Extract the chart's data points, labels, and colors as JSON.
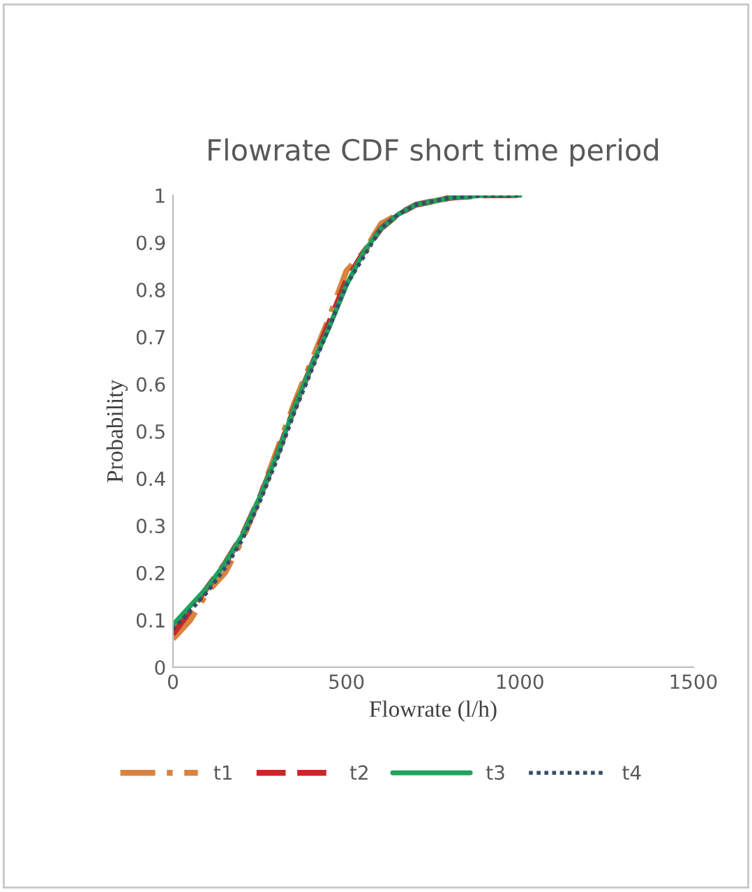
{
  "chart_data": {
    "type": "line",
    "title": "Flowrate CDF short time period",
    "xlabel": "Flowrate (l/h)",
    "ylabel": "Probability",
    "xlim": [
      0,
      1500
    ],
    "xticks": [
      0,
      500,
      1000,
      1500
    ],
    "ylim": [
      0,
      1
    ],
    "yticks": [
      0,
      0.1,
      0.2,
      0.3,
      0.4,
      0.5,
      0.6,
      0.7,
      0.8,
      0.9,
      1
    ],
    "x": [
      0,
      50,
      100,
      150,
      200,
      250,
      300,
      350,
      400,
      450,
      500,
      550,
      600,
      650,
      700,
      800,
      900,
      1000
    ],
    "grid": false,
    "legend": "bottom",
    "series": [
      {
        "name": "t1",
        "color": "#d9833f",
        "line_style": "dashdot",
        "values": [
          0.06,
          0.1,
          0.16,
          0.2,
          0.27,
          0.36,
          0.46,
          0.56,
          0.65,
          0.74,
          0.84,
          0.88,
          0.94,
          0.96,
          0.98,
          0.995,
          1,
          1
        ]
      },
      {
        "name": "t2",
        "color": "#c62828",
        "line_style": "dashed",
        "values": [
          0.07,
          0.12,
          0.17,
          0.22,
          0.28,
          0.36,
          0.45,
          0.55,
          0.64,
          0.73,
          0.82,
          0.88,
          0.93,
          0.96,
          0.98,
          0.995,
          1,
          1
        ]
      },
      {
        "name": "t3",
        "color": "#1fa35c",
        "line_style": "solid",
        "values": [
          0.09,
          0.13,
          0.17,
          0.22,
          0.28,
          0.36,
          0.45,
          0.55,
          0.64,
          0.72,
          0.81,
          0.88,
          0.93,
          0.96,
          0.98,
          0.995,
          1,
          1
        ]
      },
      {
        "name": "t4",
        "color": "#3a4a6b",
        "line_style": "dotted",
        "values": [
          0.08,
          0.12,
          0.16,
          0.21,
          0.27,
          0.35,
          0.44,
          0.54,
          0.63,
          0.72,
          0.81,
          0.87,
          0.93,
          0.96,
          0.98,
          0.995,
          1,
          1
        ]
      }
    ]
  }
}
